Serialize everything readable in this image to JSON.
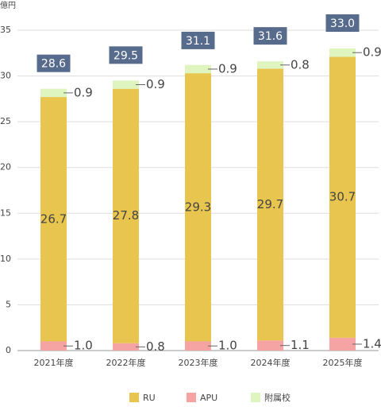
{
  "chart_data": {
    "type": "stacked_bar",
    "y_label": "億円",
    "categories": [
      "2021年度",
      "2022年度",
      "2023年度",
      "2024年度",
      "2025年度"
    ],
    "series": [
      {
        "name": "RU",
        "color": "#e8c54f",
        "values": [
          26.7,
          27.8,
          29.3,
          29.7,
          30.7
        ]
      },
      {
        "name": "APU",
        "color": "#f5a3a3",
        "values": [
          1.0,
          0.8,
          1.0,
          1.1,
          1.4
        ],
        "value_labels": [
          "1.0",
          "0.8",
          "1.0",
          "1.1",
          "1.4"
        ]
      },
      {
        "name": "附属校",
        "color": "#def5bf",
        "values": [
          0.9,
          0.9,
          0.9,
          0.8,
          0.9
        ]
      }
    ],
    "totals": {
      "values": [
        28.6,
        29.5,
        31.1,
        31.6,
        33.0
      ],
      "value_labels": [
        "28.6",
        "29.5",
        "31.1",
        "31.6",
        "33.0"
      ]
    },
    "ylim": [
      0,
      35
    ],
    "yticks": [
      0,
      5,
      10,
      15,
      20,
      25,
      30,
      35
    ],
    "grid": true
  }
}
